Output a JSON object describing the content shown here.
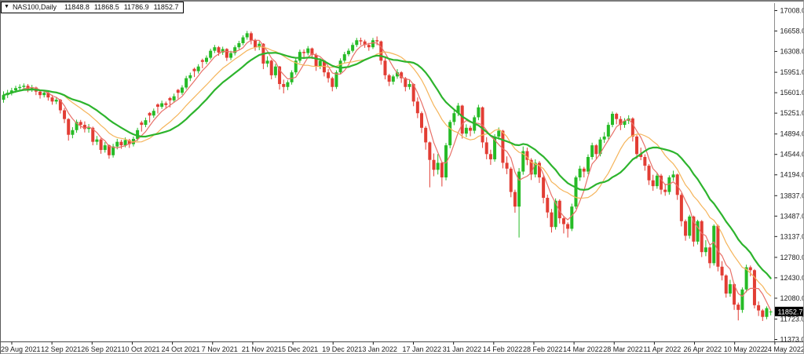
{
  "title": {
    "symbol_period": "NAS100,Daily",
    "open": "11848.8",
    "high": "11868.5",
    "low": "11786.9",
    "close": "11852.7"
  },
  "price_axis": {
    "current_price_label": "11852.7"
  },
  "chart_data": {
    "type": "candlestick",
    "symbol": "NAS100",
    "timeframe": "Daily",
    "title": "NAS100,Daily",
    "grid": false,
    "legend": null,
    "ylim": [
      11373.0,
      17008.0
    ],
    "y_tick_labels": [
      "17008.0",
      "16658.0",
      "16308.0",
      "15951.0",
      "15601.0",
      "15251.0",
      "14894.0",
      "14544.0",
      "14194.0",
      "13837.0",
      "13487.0",
      "13137.0",
      "12780.0",
      "12430.0",
      "12080.0",
      "11723.0",
      "11373.0"
    ],
    "x_tick_labels": [
      "29 Aug 2021",
      "12 Sep 2021",
      "26 Sep 2021",
      "10 Oct 2021",
      "24 Oct 2021",
      "7 Nov 2021",
      "21 Nov 2021",
      "5 Dec 2021",
      "19 Dec 2021",
      "3 Jan 2022",
      "17 Jan 2022",
      "31 Jan 2022",
      "14 Feb 2022",
      "28 Feb 2022",
      "14 Mar 2022",
      "28 Mar 2022",
      "11 Apr 2022",
      "26 Apr 2022",
      "10 May 2022",
      "24 May 2022"
    ],
    "current_price": 11852.7,
    "last_ohlc": {
      "open": 11848.8,
      "high": 11868.5,
      "low": 11786.9,
      "close": 11852.7
    },
    "colors": {
      "background": "#ffffff",
      "up": "#26bb26",
      "down": "#e23d34",
      "axis_line": "#8c8c8c",
      "separator": "#4a4a4a",
      "text": "#1c1c1c",
      "tag_bg": "#000000",
      "tag_text": "#ffffff"
    },
    "overlays": [
      {
        "name": "MA fast",
        "period": 5,
        "color": "#e87068",
        "width": 1.2
      },
      {
        "name": "MA medium",
        "period": 13,
        "color": "#f5b45a",
        "width": 1.2
      },
      {
        "name": "MA slow",
        "period": 20,
        "color": "#2db42d",
        "width": 2.2
      }
    ],
    "candles": [
      [
        15480,
        15625,
        15430,
        15560
      ],
      [
        15560,
        15650,
        15510,
        15600
      ],
      [
        15600,
        15685,
        15555,
        15640
      ],
      [
        15640,
        15720,
        15600,
        15680
      ],
      [
        15680,
        15745,
        15635,
        15700
      ],
      [
        15700,
        15760,
        15655,
        15720
      ],
      [
        15720,
        15750,
        15610,
        15660
      ],
      [
        15660,
        15735,
        15615,
        15690
      ],
      [
        15690,
        15705,
        15560,
        15620
      ],
      [
        15620,
        15655,
        15500,
        15560
      ],
      [
        15560,
        15645,
        15520,
        15600
      ],
      [
        15600,
        15625,
        15465,
        15520
      ],
      [
        15520,
        15565,
        15395,
        15450
      ],
      [
        15450,
        15530,
        15405,
        15480
      ],
      [
        15480,
        15495,
        15245,
        15300
      ],
      [
        15300,
        15340,
        15080,
        15150
      ],
      [
        15150,
        15165,
        14780,
        14880
      ],
      [
        14880,
        15010,
        14820,
        14960
      ],
      [
        14960,
        15140,
        14915,
        15100
      ],
      [
        15100,
        15135,
        14985,
        15050
      ],
      [
        15050,
        15110,
        14920,
        14980
      ],
      [
        14980,
        15065,
        14915,
        15000
      ],
      [
        15000,
        15020,
        14700,
        14760
      ],
      [
        14760,
        14860,
        14705,
        14800
      ],
      [
        14800,
        14825,
        14555,
        14620
      ],
      [
        14620,
        14755,
        14575,
        14700
      ],
      [
        14700,
        14715,
        14470,
        14530
      ],
      [
        14530,
        14725,
        14490,
        14680
      ],
      [
        14680,
        14810,
        14630,
        14760
      ],
      [
        14760,
        14795,
        14640,
        14700
      ],
      [
        14700,
        14835,
        14665,
        14790
      ],
      [
        14790,
        14810,
        14655,
        14720
      ],
      [
        14720,
        14850,
        14680,
        14810
      ],
      [
        14810,
        15000,
        14775,
        14960
      ],
      [
        15090,
        15120,
        14935,
        15050
      ],
      [
        15050,
        15175,
        15010,
        15130
      ],
      [
        15255,
        15270,
        15090,
        15210
      ],
      [
        15210,
        15330,
        15170,
        15290
      ],
      [
        15400,
        15420,
        15245,
        15360
      ],
      [
        15360,
        15465,
        15325,
        15420
      ],
      [
        15420,
        15450,
        15330,
        15390
      ],
      [
        15510,
        15530,
        15350,
        15470
      ],
      [
        15470,
        15585,
        15435,
        15540
      ],
      [
        15650,
        15665,
        15500,
        15600
      ],
      [
        15600,
        15730,
        15565,
        15690
      ],
      [
        15690,
        15890,
        15660,
        15850
      ],
      [
        15850,
        15945,
        15800,
        15900
      ],
      [
        16010,
        16030,
        15870,
        15970
      ],
      [
        15970,
        16090,
        15930,
        16050
      ],
      [
        16160,
        16185,
        16020,
        16130
      ],
      [
        16130,
        16240,
        16090,
        16200
      ],
      [
        16200,
        16355,
        16170,
        16320
      ],
      [
        16320,
        16420,
        16280,
        16380
      ],
      [
        16380,
        16400,
        16235,
        16290
      ],
      [
        16290,
        16390,
        16250,
        16350
      ],
      [
        16350,
        16365,
        16145,
        16200
      ],
      [
        16200,
        16320,
        16160,
        16280
      ],
      [
        16280,
        16415,
        16240,
        16380
      ],
      [
        16380,
        16490,
        16345,
        16450
      ],
      [
        16450,
        16585,
        16415,
        16550
      ],
      [
        16550,
        16660,
        16510,
        16620
      ],
      [
        16620,
        16650,
        16430,
        16500
      ],
      [
        16500,
        16525,
        16320,
        16380
      ],
      [
        16380,
        16480,
        16330,
        16440
      ],
      [
        16440,
        16450,
        16005,
        16100
      ],
      [
        16100,
        16225,
        16040,
        16150
      ],
      [
        16150,
        16170,
        15830,
        15900
      ],
      [
        15900,
        16095,
        15855,
        16050
      ],
      [
        16050,
        16060,
        15655,
        15750
      ],
      [
        15750,
        15825,
        15590,
        15700
      ],
      [
        15700,
        15815,
        15645,
        15780
      ],
      [
        15780,
        15985,
        15740,
        15950
      ],
      [
        15950,
        16190,
        15910,
        16150
      ],
      [
        16150,
        16340,
        16110,
        16300
      ],
      [
        16300,
        16345,
        16205,
        16280
      ],
      [
        16280,
        16400,
        16240,
        16360
      ],
      [
        16360,
        16375,
        16180,
        16250
      ],
      [
        16250,
        16280,
        15975,
        16050
      ],
      [
        16050,
        16195,
        16005,
        16150
      ],
      [
        16150,
        16165,
        15880,
        15950
      ],
      [
        15950,
        16005,
        15775,
        15850
      ],
      [
        15850,
        15875,
        15625,
        15700
      ],
      [
        15700,
        15985,
        15665,
        15950
      ],
      [
        15950,
        16190,
        15915,
        16150
      ],
      [
        16150,
        16300,
        16115,
        16260
      ],
      [
        16260,
        16360,
        16225,
        16320
      ],
      [
        16320,
        16460,
        16290,
        16420
      ],
      [
        16420,
        16540,
        16385,
        16500
      ],
      [
        16500,
        16545,
        16415,
        16480
      ],
      [
        16480,
        16510,
        16370,
        16420
      ],
      [
        16420,
        16455,
        16320,
        16380
      ],
      [
        16380,
        16540,
        16350,
        16500
      ],
      [
        16500,
        16565,
        16415,
        16480
      ],
      [
        16480,
        16495,
        16080,
        16150
      ],
      [
        16150,
        16195,
        15830,
        15900
      ],
      [
        15900,
        15925,
        15715,
        15790
      ],
      [
        15790,
        15910,
        15740,
        15880
      ],
      [
        15880,
        16005,
        15840,
        15950
      ],
      [
        15950,
        15970,
        15770,
        15850
      ],
      [
        15850,
        15870,
        15625,
        15700
      ],
      [
        15700,
        15815,
        15655,
        15750
      ],
      [
        15750,
        15760,
        15370,
        15450
      ],
      [
        15450,
        15520,
        15165,
        15250
      ],
      [
        15250,
        15280,
        14910,
        15000
      ],
      [
        15000,
        15030,
        14625,
        14750
      ],
      [
        14750,
        14765,
        13980,
        14450
      ],
      [
        14450,
        14560,
        14170,
        14280
      ],
      [
        14280,
        14550,
        14200,
        14400
      ],
      [
        14400,
        14420,
        13995,
        14150
      ],
      [
        14150,
        14740,
        14100,
        14700
      ],
      [
        14700,
        15135,
        14650,
        15100
      ],
      [
        15100,
        15295,
        15045,
        15250
      ],
      [
        15250,
        15425,
        15200,
        15380
      ],
      [
        15380,
        15395,
        14815,
        14900
      ],
      [
        14900,
        15060,
        14840,
        15000
      ],
      [
        15000,
        15035,
        14855,
        14950
      ],
      [
        14950,
        15215,
        14900,
        15180
      ],
      [
        15180,
        15395,
        15130,
        15350
      ],
      [
        15350,
        15365,
        14655,
        14750
      ],
      [
        14750,
        14840,
        14460,
        14550
      ],
      [
        14550,
        14625,
        14365,
        14460
      ],
      [
        14460,
        14890,
        14420,
        14850
      ],
      [
        14850,
        15005,
        14795,
        14950
      ],
      [
        14950,
        14965,
        14305,
        14400
      ],
      [
        14400,
        14510,
        14205,
        14300
      ],
      [
        14300,
        14330,
        13810,
        13900
      ],
      [
        13900,
        13940,
        13545,
        13650
      ],
      [
        13650,
        14310,
        13120,
        14250
      ],
      [
        14250,
        14680,
        14195,
        14600
      ],
      [
        14600,
        14660,
        14360,
        14450
      ],
      [
        14450,
        14480,
        14105,
        14200
      ],
      [
        14200,
        14460,
        14150,
        14400
      ],
      [
        14400,
        14430,
        14055,
        14150
      ],
      [
        14150,
        14185,
        13705,
        13800
      ],
      [
        13800,
        13855,
        13455,
        13550
      ],
      [
        13550,
        13610,
        13205,
        13300
      ],
      [
        13300,
        13790,
        13255,
        13750
      ],
      [
        13750,
        13775,
        13360,
        13450
      ],
      [
        13450,
        13490,
        13190,
        13350
      ],
      [
        13350,
        13380,
        13120,
        13270
      ],
      [
        13270,
        13700,
        13230,
        13650
      ],
      [
        13650,
        14180,
        13610,
        14150
      ],
      [
        14150,
        14350,
        14090,
        14300
      ],
      [
        14300,
        14330,
        14150,
        14250
      ],
      [
        14250,
        14545,
        14205,
        14500
      ],
      [
        14500,
        14745,
        14455,
        14700
      ],
      [
        14700,
        14720,
        14470,
        14550
      ],
      [
        14550,
        14840,
        14510,
        14800
      ],
      [
        14800,
        14925,
        14740,
        14850
      ],
      [
        14850,
        15095,
        14805,
        15050
      ],
      [
        15050,
        15280,
        15010,
        15240
      ],
      [
        15240,
        15260,
        15060,
        15150
      ],
      [
        15150,
        15200,
        14960,
        15050
      ],
      [
        15050,
        15165,
        15000,
        15120
      ],
      [
        15120,
        15215,
        15065,
        15160
      ],
      [
        15160,
        15180,
        14765,
        14850
      ],
      [
        14850,
        14875,
        14470,
        14550
      ],
      [
        14550,
        14660,
        14445,
        14500
      ],
      [
        14500,
        14545,
        14265,
        14350
      ],
      [
        14350,
        14380,
        14020,
        14100
      ],
      [
        14100,
        14195,
        13920,
        14000
      ],
      [
        14000,
        14230,
        13955,
        14180
      ],
      [
        14180,
        14210,
        13860,
        13940
      ],
      [
        13940,
        14040,
        13835,
        13900
      ],
      [
        13900,
        14185,
        13855,
        14150
      ],
      [
        14150,
        14265,
        14090,
        14200
      ],
      [
        14200,
        14215,
        13765,
        13850
      ],
      [
        13850,
        13880,
        13310,
        13400
      ],
      [
        13400,
        13430,
        13065,
        13150
      ],
      [
        13150,
        13510,
        13100,
        13480
      ],
      [
        13480,
        13495,
        12965,
        13050
      ],
      [
        13050,
        13425,
        13000,
        13400
      ],
      [
        13400,
        13420,
        12785,
        12870
      ],
      [
        12870,
        13075,
        12800,
        12950
      ],
      [
        12950,
        12975,
        12595,
        12680
      ],
      [
        12680,
        13345,
        12640,
        13320
      ],
      [
        13320,
        13340,
        12540,
        12620
      ],
      [
        12620,
        12715,
        12385,
        12470
      ],
      [
        12470,
        12490,
        12090,
        12160
      ],
      [
        12160,
        12395,
        12105,
        12320
      ],
      [
        12320,
        12340,
        11880,
        11970
      ],
      [
        11970,
        12005,
        11700,
        11880
      ],
      [
        11880,
        12265,
        11830,
        12230
      ],
      [
        12230,
        12655,
        12180,
        12610
      ],
      [
        12610,
        12640,
        12455,
        12560
      ],
      [
        12560,
        12580,
        11905,
        11960
      ],
      [
        11960,
        12025,
        11775,
        11870
      ],
      [
        11870,
        11895,
        11690,
        11760
      ],
      [
        11760,
        11940,
        11720,
        11910
      ],
      [
        11848.8,
        11868.5,
        11786.9,
        11852.7
      ]
    ]
  }
}
